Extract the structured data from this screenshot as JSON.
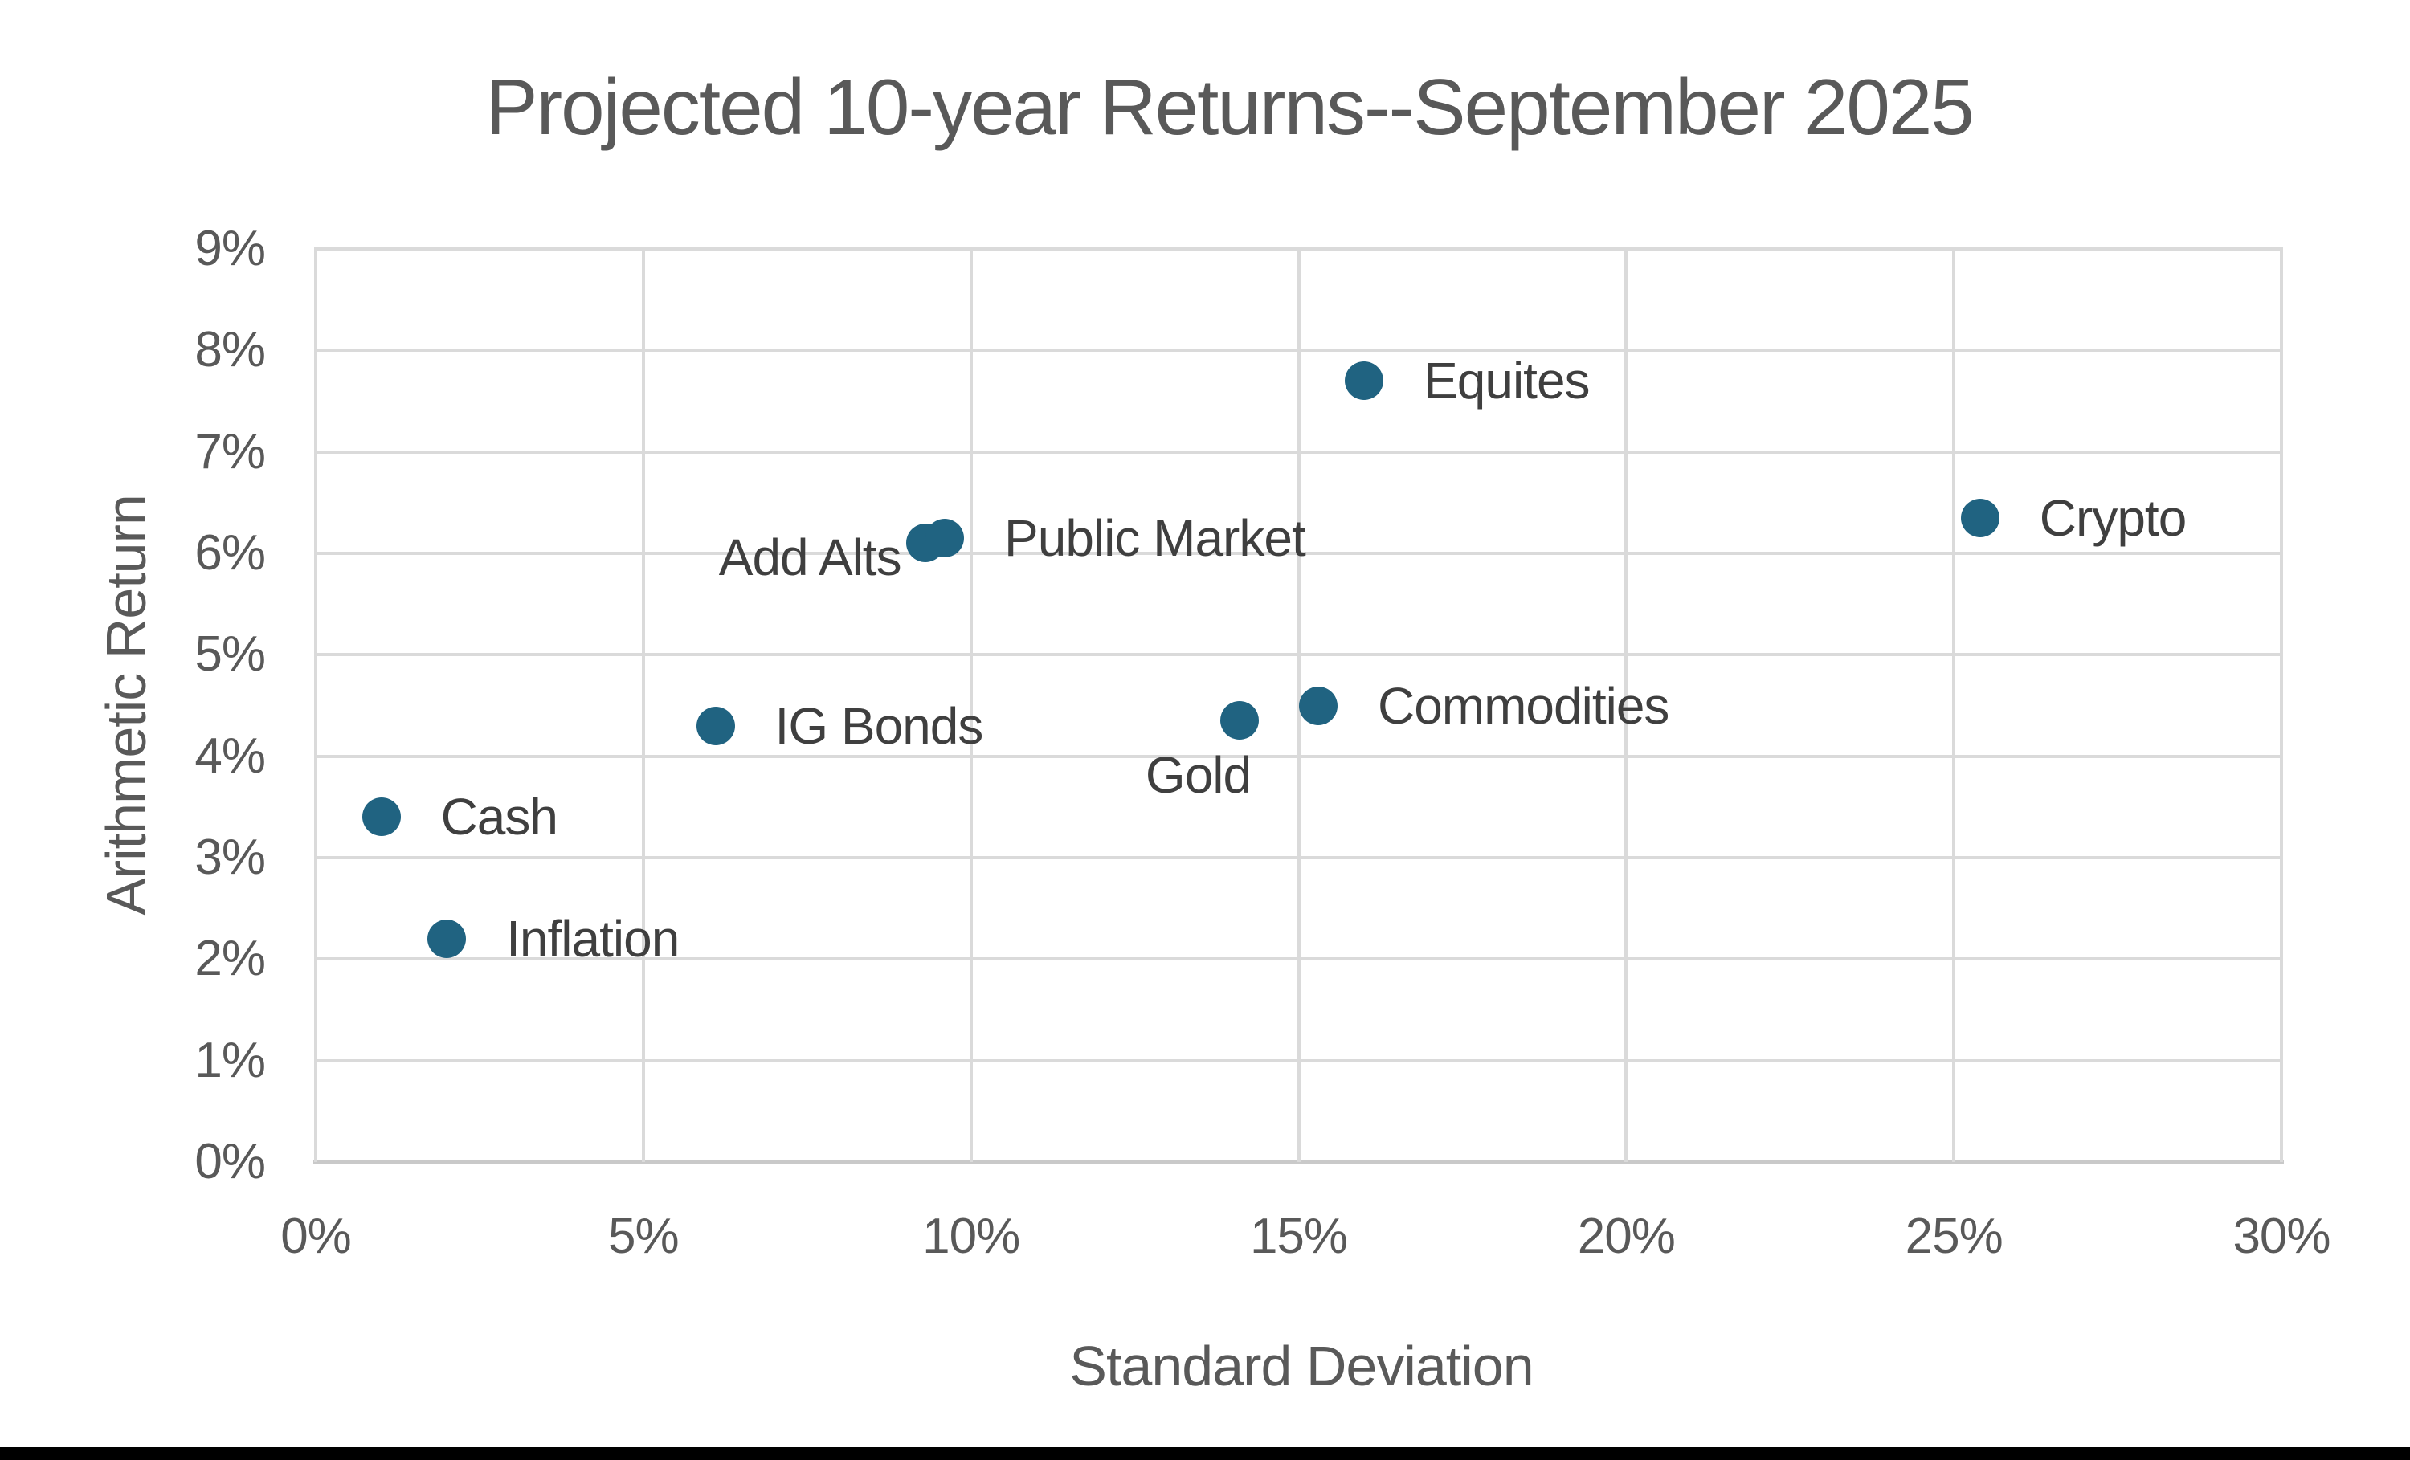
{
  "chart_data": {
    "type": "scatter",
    "title": "Projected 10-year Returns--September 2025",
    "xlabel": "Standard Deviation",
    "ylabel": "Arithmetic Return",
    "xlim": [
      0,
      30
    ],
    "ylim": [
      0,
      9
    ],
    "grid": true,
    "legend": "none",
    "x_tick_values": [
      0,
      5,
      10,
      15,
      20,
      25,
      30
    ],
    "x_tick_labels": [
      "0%",
      "5%",
      "10%",
      "15%",
      "20%",
      "25%",
      "30%"
    ],
    "y_tick_values": [
      0,
      1,
      2,
      3,
      4,
      5,
      6,
      7,
      8,
      9
    ],
    "y_tick_labels": [
      "0%",
      "1%",
      "2%",
      "3%",
      "4%",
      "5%",
      "6%",
      "7%",
      "8%",
      "9%"
    ],
    "points": [
      {
        "label": "Cash",
        "x": 1.0,
        "y": 3.4,
        "label_side": "right"
      },
      {
        "label": "Inflation",
        "x": 2.0,
        "y": 2.2,
        "label_side": "right"
      },
      {
        "label": "IG Bonds",
        "x": 6.1,
        "y": 4.3,
        "label_side": "right"
      },
      {
        "label": "Add Alts",
        "x": 9.3,
        "y": 6.1,
        "label_side": "left"
      },
      {
        "label": "Public Market",
        "x": 9.6,
        "y": 6.15,
        "label_side": "right"
      },
      {
        "label": "Gold",
        "x": 14.1,
        "y": 4.35,
        "label_side": "below-left"
      },
      {
        "label": "Commodities",
        "x": 15.3,
        "y": 4.5,
        "label_side": "right"
      },
      {
        "label": "Equites",
        "x": 16.0,
        "y": 7.7,
        "label_side": "right"
      },
      {
        "label": "Crypto",
        "x": 25.4,
        "y": 6.35,
        "label_side": "right"
      }
    ],
    "colors": {
      "marker": "#206381",
      "gridline": "#DADADA",
      "axis_line": "#C9C9C9",
      "title_text": "#595959",
      "tick_text": "#595959",
      "point_label_text": "#3F3F3F",
      "footer_bar": "#000000",
      "background": "#FFFFFF"
    }
  }
}
